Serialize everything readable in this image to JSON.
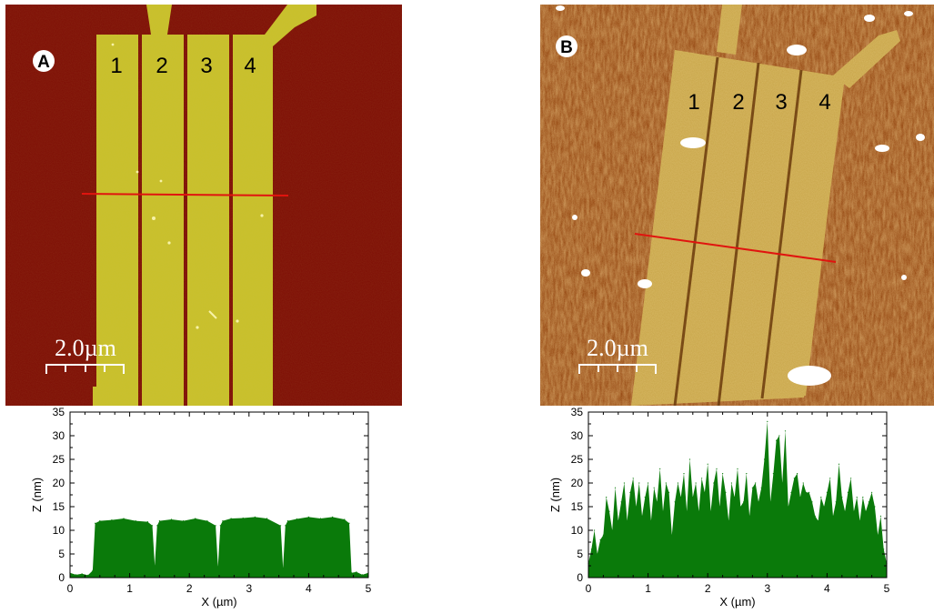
{
  "figure": {
    "panels": [
      {
        "id": "A",
        "label": "A",
        "lane_numbers": [
          "1",
          "2",
          "3",
          "4"
        ],
        "scale_bar": "2.0µm",
        "colors": {
          "background": "#7e0d05",
          "lanes": "#c9c12a",
          "profile_line": "#e0140f"
        }
      },
      {
        "id": "B",
        "label": "B",
        "lane_numbers": [
          "1",
          "2",
          "3",
          "4"
        ],
        "scale_bar": "2.0µm",
        "colors": {
          "background": "#8f3d07",
          "lanes": "#c9a64a",
          "profile_line": "#e0140f"
        }
      }
    ]
  },
  "chart_data": [
    {
      "type": "area",
      "panel": "A",
      "xlabel": "X (µm)",
      "ylabel": "Z (nm)",
      "xlim": [
        0,
        5
      ],
      "ylim": [
        0,
        35
      ],
      "xticks": [
        "0",
        "1",
        "2",
        "3",
        "4",
        "5"
      ],
      "yticks": [
        "0",
        "5",
        "10",
        "15",
        "20",
        "25",
        "30",
        "35"
      ],
      "fill_color": "#0a7a0a",
      "x": [
        0,
        0.1,
        0.2,
        0.3,
        0.38,
        0.42,
        0.5,
        0.7,
        0.9,
        1.1,
        1.3,
        1.38,
        1.42,
        1.46,
        1.5,
        1.7,
        1.9,
        2.1,
        2.3,
        2.44,
        2.48,
        2.52,
        2.56,
        2.7,
        2.9,
        3.1,
        3.3,
        3.53,
        3.57,
        3.61,
        3.65,
        3.8,
        4.0,
        4.2,
        4.4,
        4.6,
        4.68,
        4.72,
        4.8,
        4.9,
        5.0
      ],
      "y": [
        1,
        0.6,
        0.8,
        0.5,
        1.5,
        11.5,
        12,
        12.2,
        12.5,
        12,
        11.8,
        11,
        2.5,
        11,
        12,
        12.3,
        12,
        12.5,
        12,
        11,
        2.3,
        11,
        12,
        12.5,
        12.6,
        12.8,
        12.5,
        11,
        2,
        11,
        12,
        12.4,
        12.8,
        12.5,
        12.8,
        12.3,
        11.5,
        1,
        1.2,
        0.6,
        1
      ]
    },
    {
      "type": "area",
      "panel": "B",
      "xlabel": "X (µm)",
      "ylabel": "Z (nm)",
      "xlim": [
        0,
        5
      ],
      "ylim": [
        0,
        35
      ],
      "xticks": [
        "0",
        "1",
        "2",
        "3",
        "4",
        "5"
      ],
      "yticks": [
        "0",
        "5",
        "10",
        "15",
        "20",
        "25",
        "30",
        "35"
      ],
      "fill_color": "#0a7a0a",
      "x": [
        0,
        0.05,
        0.1,
        0.15,
        0.2,
        0.25,
        0.3,
        0.35,
        0.4,
        0.45,
        0.5,
        0.55,
        0.6,
        0.65,
        0.7,
        0.75,
        0.8,
        0.85,
        0.9,
        0.95,
        1.0,
        1.05,
        1.1,
        1.15,
        1.2,
        1.25,
        1.3,
        1.35,
        1.4,
        1.45,
        1.5,
        1.55,
        1.6,
        1.65,
        1.7,
        1.75,
        1.8,
        1.85,
        1.9,
        1.95,
        2.0,
        2.05,
        2.1,
        2.15,
        2.2,
        2.25,
        2.3,
        2.35,
        2.4,
        2.45,
        2.5,
        2.55,
        2.6,
        2.65,
        2.7,
        2.75,
        2.8,
        2.85,
        2.9,
        2.95,
        3.0,
        3.05,
        3.1,
        3.15,
        3.2,
        3.25,
        3.3,
        3.35,
        3.4,
        3.45,
        3.5,
        3.55,
        3.6,
        3.65,
        3.7,
        3.75,
        3.8,
        3.85,
        3.9,
        3.95,
        4.0,
        4.05,
        4.1,
        4.15,
        4.2,
        4.25,
        4.3,
        4.35,
        4.4,
        4.45,
        4.5,
        4.55,
        4.6,
        4.65,
        4.7,
        4.75,
        4.8,
        4.85,
        4.9,
        4.95,
        5.0
      ],
      "y": [
        3,
        6,
        10,
        5,
        8,
        9,
        17,
        14,
        10,
        19,
        12,
        16,
        20,
        12,
        18,
        21,
        15,
        20,
        13,
        17,
        20,
        12,
        19,
        16,
        23,
        14,
        20,
        18,
        9,
        16,
        20,
        17,
        22,
        14,
        25,
        17,
        20,
        14,
        21,
        18,
        24,
        14,
        20,
        23,
        15,
        22,
        18,
        12,
        20,
        17,
        23,
        15,
        16,
        22,
        13,
        19,
        20,
        16,
        19,
        25,
        33,
        16,
        22,
        29,
        30,
        20,
        31,
        15,
        18,
        21,
        22,
        17,
        20,
        18,
        18,
        16,
        13,
        12,
        17,
        15,
        18,
        21,
        13,
        16,
        24,
        17,
        14,
        18,
        21,
        14,
        17,
        12,
        17,
        14,
        16,
        18,
        15,
        9,
        13,
        6,
        3
      ]
    }
  ]
}
